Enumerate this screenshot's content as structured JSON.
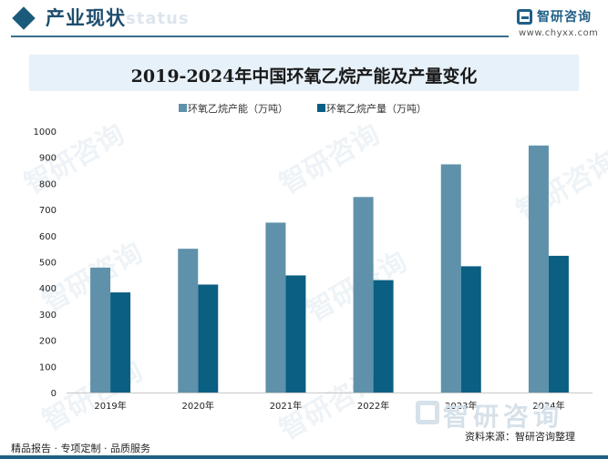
{
  "header": {
    "section_title": "产业现状",
    "background_word": "status",
    "brand_name": "智研咨询",
    "brand_url": "www.chyxx.com"
  },
  "chart_data": {
    "type": "bar",
    "title": "2019-2024年中国环氧乙烷产能及产量变化",
    "categories": [
      "2019年",
      "2020年",
      "2021年",
      "2022年",
      "2023年",
      "2024年"
    ],
    "series": [
      {
        "name": "环氧乙烷产能（万吨）",
        "values": [
          478,
          550,
          650,
          748,
          873,
          945
        ],
        "color": "#5f91aa"
      },
      {
        "name": "环氧乙烷产量（万吨）",
        "values": [
          383,
          413,
          448,
          430,
          483,
          523
        ],
        "color": "#0a5f82"
      }
    ],
    "ylim": [
      0,
      1000
    ],
    "yticks": [
      0,
      100,
      200,
      300,
      400,
      500,
      600,
      700,
      800,
      900,
      1000
    ],
    "xlabel": "",
    "ylabel": "",
    "grid": false,
    "legend_position": "top"
  },
  "footer": {
    "left": "精品报告 · 专项定制 · 品质服务",
    "source": "资料来源：智研咨询整理"
  },
  "watermark": {
    "text": "智研咨询"
  }
}
